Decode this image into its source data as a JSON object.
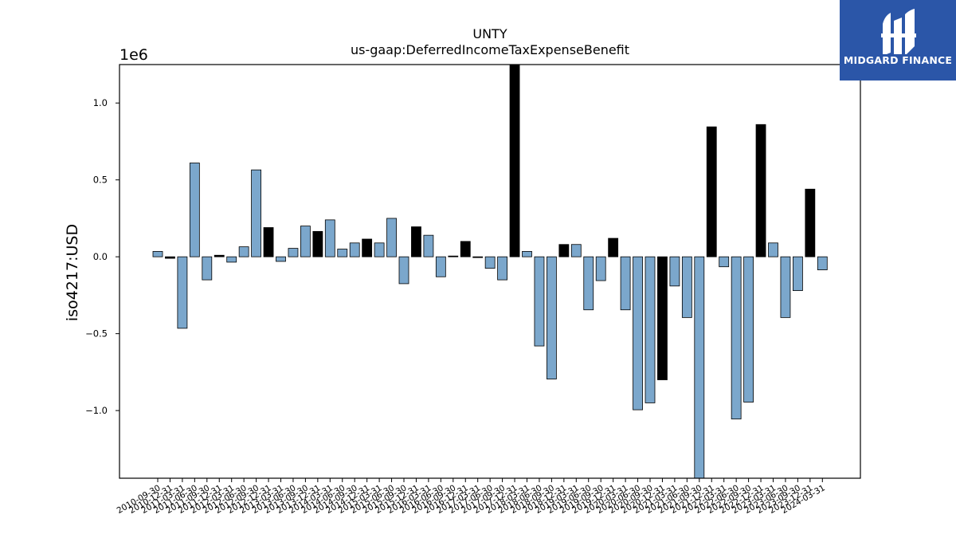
{
  "chart_data": {
    "type": "bar",
    "title": "UNTY",
    "subtitle": "us-gaap:DeferredIncomeTaxExpenseBenefit",
    "ylabel": "iso4217:USD",
    "y_scale_label": "1e6",
    "ylim": [
      -1.44,
      1.25
    ],
    "yticks": [
      -1.0,
      -0.5,
      0.0,
      0.5,
      1.0
    ],
    "ytick_labels": [
      "−1.0",
      "−0.5",
      "0.0",
      "0.5",
      "1.0"
    ],
    "categories": [
      "2010-09-30",
      "2010-12-31",
      "2011-03-31",
      "2011-06-30",
      "2011-09-30",
      "2011-12-31",
      "2012-03-31",
      "2012-06-30",
      "2012-09-30",
      "2012-12-31",
      "2013-03-31",
      "2013-06-30",
      "2013-09-30",
      "2013-12-31",
      "2014-03-31",
      "2014-06-30",
      "2014-09-30",
      "2014-12-31",
      "2015-03-31",
      "2015-06-30",
      "2015-09-30",
      "2015-12-31",
      "2016-03-31",
      "2016-06-30",
      "2016-09-30",
      "2016-12-31",
      "2017-03-31",
      "2017-06-30",
      "2017-09-30",
      "2017-12-31",
      "2018-03-31",
      "2018-06-30",
      "2018-09-30",
      "2018-12-31",
      "2019-03-31",
      "2019-06-30",
      "2019-09-30",
      "2019-12-31",
      "2020-03-31",
      "2020-06-30",
      "2020-09-30",
      "2020-12-31",
      "2021-03-31",
      "2021-06-30",
      "2021-09-30",
      "2021-12-31",
      "2022-03-31",
      "2022-06-30",
      "2022-09-30",
      "2022-12-31",
      "2023-03-31",
      "2023-06-30",
      "2023-09-30",
      "2023-12-31",
      "2024-03-31"
    ],
    "values": [
      0.035,
      -0.01,
      -0.465,
      0.61,
      -0.15,
      0.01,
      -0.035,
      0.065,
      0.565,
      0.19,
      -0.03,
      0.055,
      0.2,
      0.165,
      0.24,
      0.05,
      0.09,
      0.115,
      0.09,
      0.25,
      -0.175,
      0.195,
      0.14,
      -0.13,
      0.005,
      0.1,
      -0.005,
      -0.075,
      -0.15,
      1.25,
      0.035,
      -0.58,
      -0.795,
      0.08,
      0.08,
      -0.345,
      -0.155,
      0.12,
      -0.345,
      -0.995,
      -0.95,
      -0.8,
      -0.19,
      -0.395,
      -1.44,
      0.845,
      -0.065,
      -1.055,
      -0.945,
      0.86,
      0.09,
      -0.395,
      -0.22,
      0.44,
      -0.085
    ],
    "highlight": [
      false,
      true,
      false,
      false,
      false,
      true,
      false,
      false,
      false,
      true,
      false,
      false,
      false,
      true,
      false,
      false,
      false,
      true,
      false,
      false,
      false,
      true,
      false,
      false,
      true,
      true,
      true,
      false,
      false,
      true,
      false,
      false,
      false,
      true,
      false,
      false,
      false,
      true,
      false,
      false,
      false,
      true,
      false,
      false,
      false,
      true,
      false,
      false,
      false,
      true,
      false,
      false,
      false,
      true,
      false
    ],
    "colors": {
      "bar": "#7ba7cc",
      "bar_highlight": "#000000",
      "edge": "#000000"
    },
    "grid": false,
    "legend": "none"
  },
  "logo": {
    "text": "MIDGARD FINANCE",
    "icon": "midgard-logo-icon"
  }
}
